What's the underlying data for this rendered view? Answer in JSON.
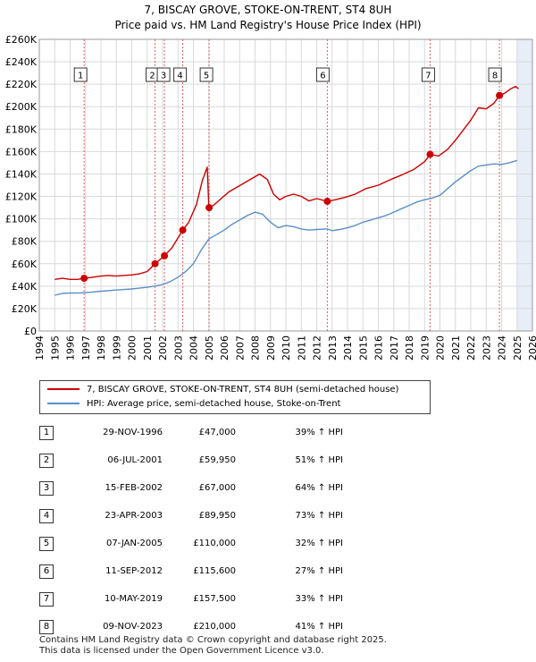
{
  "title_line1": "7, BISCAY GROVE, STOKE-ON-TRENT, ST4 8UH",
  "title_line2": "Price paid vs. HM Land Registry's House Price Index (HPI)",
  "legend": {
    "property_label": "7, BISCAY GROVE, STOKE-ON-TRENT, ST4 8UH (semi-detached house)",
    "hpi_label": "HPI: Average price, semi-detached house, Stoke-on-Trent"
  },
  "colors": {
    "property": "#cc0000",
    "hpi": "#5b8fc7",
    "shade": "#e8eef8",
    "grid": "#d9d9d9",
    "vline": "#e06060"
  },
  "transactions": [
    {
      "num": "1",
      "date": "29-NOV-1996",
      "price": "£47,000",
      "hpi": "39% ↑ HPI"
    },
    {
      "num": "2",
      "date": "06-JUL-2001",
      "price": "£59,950",
      "hpi": "51% ↑ HPI"
    },
    {
      "num": "3",
      "date": "15-FEB-2002",
      "price": "£67,000",
      "hpi": "64% ↑ HPI"
    },
    {
      "num": "4",
      "date": "23-APR-2003",
      "price": "£89,950",
      "hpi": "73% ↑ HPI"
    },
    {
      "num": "5",
      "date": "07-JAN-2005",
      "price": "£110,000",
      "hpi": "32% ↑ HPI"
    },
    {
      "num": "6",
      "date": "11-SEP-2012",
      "price": "£115,600",
      "hpi": "27% ↑ HPI"
    },
    {
      "num": "7",
      "date": "10-MAY-2019",
      "price": "£157,500",
      "hpi": "33% ↑ HPI"
    },
    {
      "num": "8",
      "date": "09-NOV-2023",
      "price": "£210,000",
      "hpi": "41% ↑ HPI"
    }
  ],
  "footer_line1": "Contains HM Land Registry data © Crown copyright and database right 2025.",
  "footer_line2": "This data is licensed under the Open Government Licence v3.0.",
  "chart_data": {
    "type": "line",
    "title": "7, BISCAY GROVE, STOKE-ON-TRENT, ST4 8UH",
    "subtitle": "Price paid vs. HM Land Registry's House Price Index (HPI)",
    "xlim": [
      1994,
      2026
    ],
    "ylim": [
      0,
      260000
    ],
    "x_ticks": [
      1994,
      1995,
      1996,
      1997,
      1998,
      1999,
      2000,
      2001,
      2002,
      2003,
      2004,
      2005,
      2006,
      2007,
      2008,
      2009,
      2010,
      2011,
      2012,
      2013,
      2014,
      2015,
      2016,
      2017,
      2018,
      2019,
      2020,
      2021,
      2022,
      2023,
      2024,
      2025,
      2026
    ],
    "y_ticks": [
      {
        "value": 0,
        "label": "£0"
      },
      {
        "value": 20000,
        "label": "£20K"
      },
      {
        "value": 40000,
        "label": "£40K"
      },
      {
        "value": 60000,
        "label": "£60K"
      },
      {
        "value": 80000,
        "label": "£80K"
      },
      {
        "value": 100000,
        "label": "£100K"
      },
      {
        "value": 120000,
        "label": "£120K"
      },
      {
        "value": 140000,
        "label": "£140K"
      },
      {
        "value": 160000,
        "label": "£160K"
      },
      {
        "value": 180000,
        "label": "£180K"
      },
      {
        "value": 200000,
        "label": "£200K"
      },
      {
        "value": 220000,
        "label": "£220K"
      },
      {
        "value": 240000,
        "label": "£240K"
      },
      {
        "value": 260000,
        "label": "£260K"
      }
    ],
    "future_shade_from": 2025,
    "sales": [
      {
        "label": "1",
        "x": 1996.91,
        "y": 47000
      },
      {
        "label": "2",
        "x": 2001.51,
        "y": 59950
      },
      {
        "label": "3",
        "x": 2002.12,
        "y": 67000
      },
      {
        "label": "4",
        "x": 2003.31,
        "y": 89950
      },
      {
        "label": "5",
        "x": 2005.02,
        "y": 110000
      },
      {
        "label": "6",
        "x": 2012.69,
        "y": 115600
      },
      {
        "label": "7",
        "x": 2019.36,
        "y": 157500
      },
      {
        "label": "8",
        "x": 2023.86,
        "y": 210000
      }
    ],
    "series": [
      {
        "name": "7, BISCAY GROVE, STOKE-ON-TRENT, ST4 8UH (semi-detached house)",
        "points": [
          [
            1995.0,
            46000
          ],
          [
            1995.5,
            47000
          ],
          [
            1996.0,
            46000
          ],
          [
            1996.5,
            46000
          ],
          [
            1996.91,
            47000
          ],
          [
            1997.5,
            48000
          ],
          [
            1998.0,
            49000
          ],
          [
            1998.5,
            49500
          ],
          [
            1999.0,
            49000
          ],
          [
            1999.5,
            49500
          ],
          [
            2000.0,
            50000
          ],
          [
            2000.5,
            51000
          ],
          [
            2001.0,
            53000
          ],
          [
            2001.51,
            59950
          ],
          [
            2002.12,
            67000
          ],
          [
            2002.6,
            74000
          ],
          [
            2003.31,
            89950
          ],
          [
            2003.7,
            97000
          ],
          [
            2004.2,
            113000
          ],
          [
            2004.6,
            135000
          ],
          [
            2004.9,
            146000
          ],
          [
            2005.0,
            110000
          ],
          [
            2005.3,
            112000
          ],
          [
            2005.8,
            118000
          ],
          [
            2006.3,
            124000
          ],
          [
            2006.8,
            128000
          ],
          [
            2007.3,
            132000
          ],
          [
            2007.8,
            136000
          ],
          [
            2008.3,
            140000
          ],
          [
            2008.8,
            135000
          ],
          [
            2009.2,
            122000
          ],
          [
            2009.6,
            117000
          ],
          [
            2010.0,
            120000
          ],
          [
            2010.5,
            122000
          ],
          [
            2011.0,
            120000
          ],
          [
            2011.5,
            116000
          ],
          [
            2012.0,
            118000
          ],
          [
            2012.69,
            115600
          ],
          [
            2013.2,
            117000
          ],
          [
            2013.8,
            119000
          ],
          [
            2014.5,
            122000
          ],
          [
            2015.2,
            127000
          ],
          [
            2016.0,
            130000
          ],
          [
            2016.8,
            135000
          ],
          [
            2017.5,
            139000
          ],
          [
            2018.3,
            144000
          ],
          [
            2019.0,
            151000
          ],
          [
            2019.36,
            157500
          ],
          [
            2019.9,
            156000
          ],
          [
            2020.5,
            162000
          ],
          [
            2021.0,
            170000
          ],
          [
            2021.5,
            179000
          ],
          [
            2022.0,
            188000
          ],
          [
            2022.5,
            199000
          ],
          [
            2023.0,
            198000
          ],
          [
            2023.5,
            203000
          ],
          [
            2023.86,
            210000
          ],
          [
            2024.2,
            212000
          ],
          [
            2024.6,
            216000
          ],
          [
            2024.9,
            218000
          ],
          [
            2025.1,
            216000
          ]
        ]
      },
      {
        "name": "HPI: Average price, semi-detached house, Stoke-on-Trent",
        "points": [
          [
            1995.0,
            32000
          ],
          [
            1995.5,
            33500
          ],
          [
            1996.0,
            34000
          ],
          [
            1996.5,
            33800
          ],
          [
            1997.0,
            34200
          ],
          [
            1997.5,
            34800
          ],
          [
            1998.0,
            35500
          ],
          [
            1998.5,
            36000
          ],
          [
            1999.0,
            36500
          ],
          [
            1999.5,
            37000
          ],
          [
            2000.0,
            37500
          ],
          [
            2000.5,
            38200
          ],
          [
            2001.0,
            39000
          ],
          [
            2001.5,
            40000
          ],
          [
            2002.0,
            41500
          ],
          [
            2002.5,
            44000
          ],
          [
            2003.0,
            48000
          ],
          [
            2003.5,
            53000
          ],
          [
            2004.0,
            60000
          ],
          [
            2004.5,
            72000
          ],
          [
            2005.0,
            82000
          ],
          [
            2005.5,
            86000
          ],
          [
            2006.0,
            90000
          ],
          [
            2006.5,
            95000
          ],
          [
            2007.0,
            99000
          ],
          [
            2007.5,
            103000
          ],
          [
            2008.0,
            106000
          ],
          [
            2008.5,
            104000
          ],
          [
            2009.0,
            97000
          ],
          [
            2009.5,
            92000
          ],
          [
            2010.0,
            94000
          ],
          [
            2010.5,
            93000
          ],
          [
            2011.0,
            91000
          ],
          [
            2011.5,
            90000
          ],
          [
            2012.0,
            90500
          ],
          [
            2012.69,
            91000
          ],
          [
            2013.0,
            89500
          ],
          [
            2013.5,
            90500
          ],
          [
            2014.0,
            92000
          ],
          [
            2014.5,
            94000
          ],
          [
            2015.0,
            97000
          ],
          [
            2015.5,
            99000
          ],
          [
            2016.0,
            101000
          ],
          [
            2016.5,
            103000
          ],
          [
            2017.0,
            106000
          ],
          [
            2017.5,
            109000
          ],
          [
            2018.0,
            112000
          ],
          [
            2018.5,
            115000
          ],
          [
            2019.0,
            117000
          ],
          [
            2019.5,
            118500
          ],
          [
            2020.0,
            121000
          ],
          [
            2020.5,
            127000
          ],
          [
            2021.0,
            133000
          ],
          [
            2021.5,
            138000
          ],
          [
            2022.0,
            143000
          ],
          [
            2022.5,
            147000
          ],
          [
            2023.0,
            148000
          ],
          [
            2023.5,
            149000
          ],
          [
            2024.0,
            148500
          ],
          [
            2024.5,
            150000
          ],
          [
            2025.0,
            152000
          ]
        ]
      }
    ]
  }
}
